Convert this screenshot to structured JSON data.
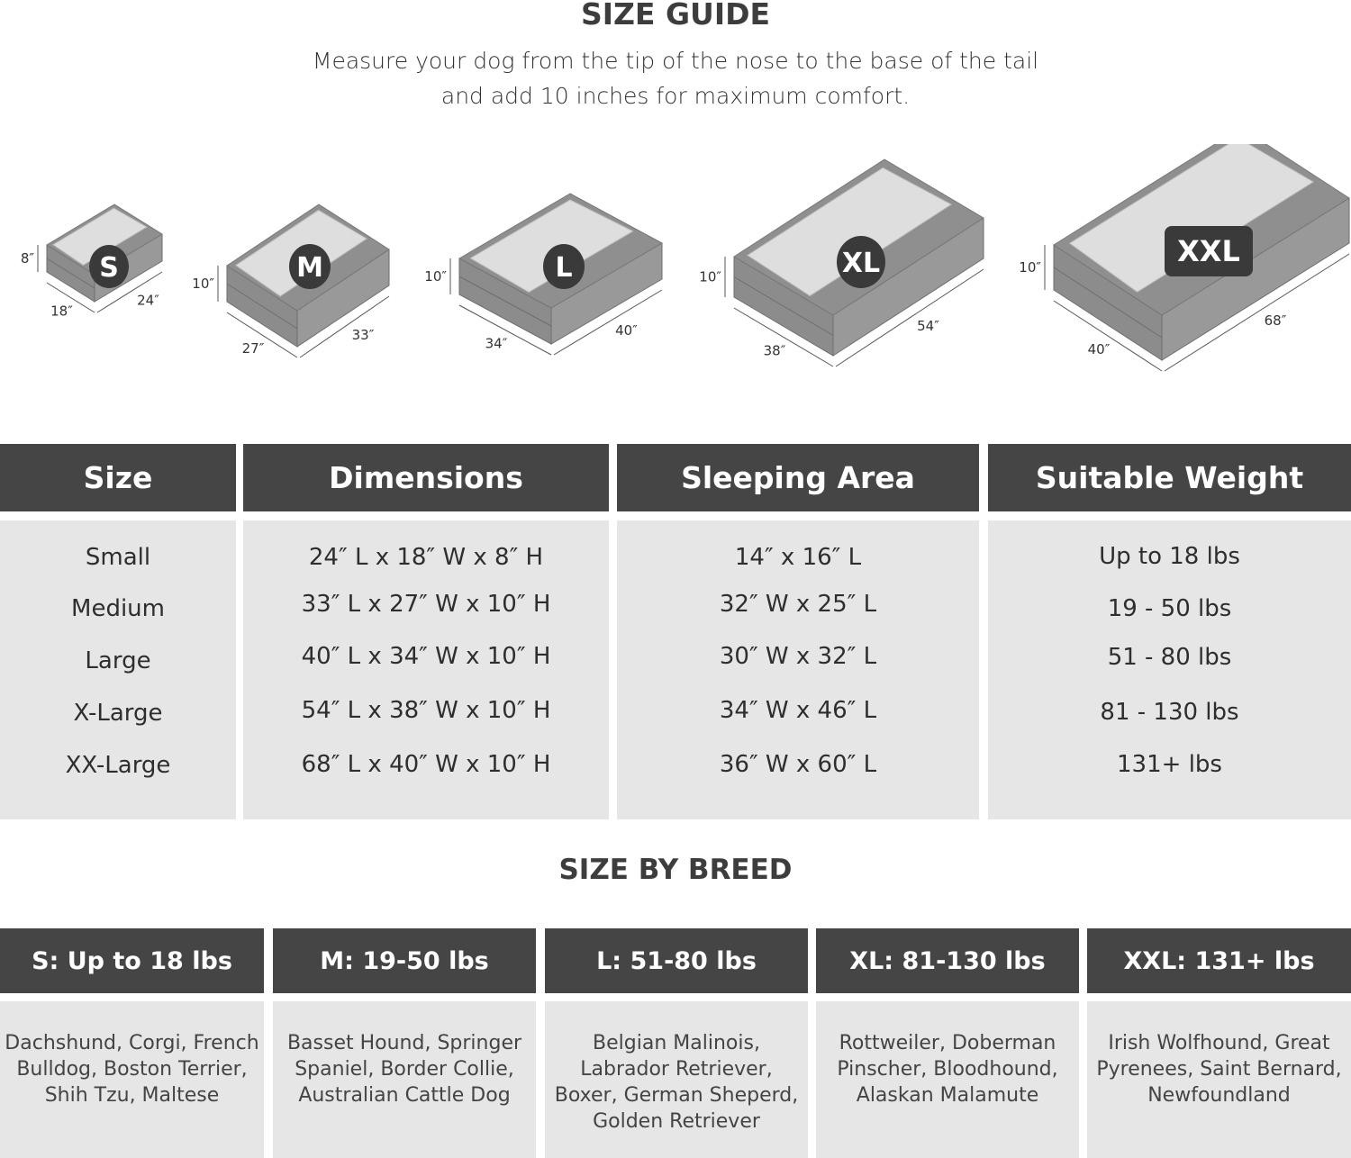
{
  "header": {
    "title": "SIZE GUIDE",
    "subtitle_line1": "Measure your dog from the tip of the nose to the base of the tail",
    "subtitle_line2": "and add 10 inches for maximum comfort."
  },
  "beds": [
    {
      "badge": "S",
      "height": "8″",
      "width": "18″",
      "length": "24″"
    },
    {
      "badge": "M",
      "height": "10″",
      "width": "27″",
      "length": "33″"
    },
    {
      "badge": "L",
      "height": "10″",
      "width": "34″",
      "length": "40″"
    },
    {
      "badge": "XL",
      "height": "10″",
      "width": "38″",
      "length": "54″"
    },
    {
      "badge": "XXL",
      "height": "10″",
      "width": "40″",
      "length": "68″"
    }
  ],
  "size_table": {
    "headers": [
      "Size",
      "Dimensions",
      "Sleeping Area",
      "Suitable Weight"
    ],
    "columns": [
      [
        "Small",
        "Medium",
        "Large",
        "X-Large",
        "XX-Large"
      ],
      [
        "24″ L x 18″ W x 8″ H",
        "33″ L x 27″ W x 10″ H",
        "40″ L x 34″ W x 10″ H",
        "54″ L x 38″ W x 10″ H",
        "68″ L x 40″ W x 10″ H"
      ],
      [
        "14″ x 16″ L",
        "32″ W x 25″ L",
        "30″ W x 32″ L",
        "34″ W x 46″ L",
        "36″ W x 60″ L"
      ],
      [
        "Up to 18 lbs",
        "19 - 50 lbs",
        "51 - 80 lbs",
        "81 - 130 lbs",
        "131+ lbs"
      ]
    ]
  },
  "breed_section": {
    "title": "SIZE BY BREED",
    "columns": [
      {
        "header": "S: Up to 18 lbs",
        "breeds": "Dachshund, Corgi, French Bulldog, Boston Terrier, Shih Tzu, Maltese"
      },
      {
        "header": "M: 19-50 lbs",
        "breeds": "Basset Hound, Springer Spaniel, Border Collie, Australian Cattle Dog"
      },
      {
        "header": "L: 51-80 lbs",
        "breeds": "Belgian Malinois, Labrador Retriever, Boxer, German Sheperd, Golden Retriever"
      },
      {
        "header": "XL: 81-130 lbs",
        "breeds": "Rottweiler, Doberman Pinscher, Bloodhound, Alaskan Malamute"
      },
      {
        "header": "XXL: 131+ lbs",
        "breeds": "Irish Wolfhound, Great Pyrenees, Saint Bernard, Newfoundland"
      }
    ]
  },
  "colors": {
    "header_bg": "#444544",
    "cell_bg": "#e6e6e6",
    "bed_frame": "#8f8f8f",
    "bed_cushion": "#dedede",
    "badge_bg": "#3a3a3a"
  }
}
